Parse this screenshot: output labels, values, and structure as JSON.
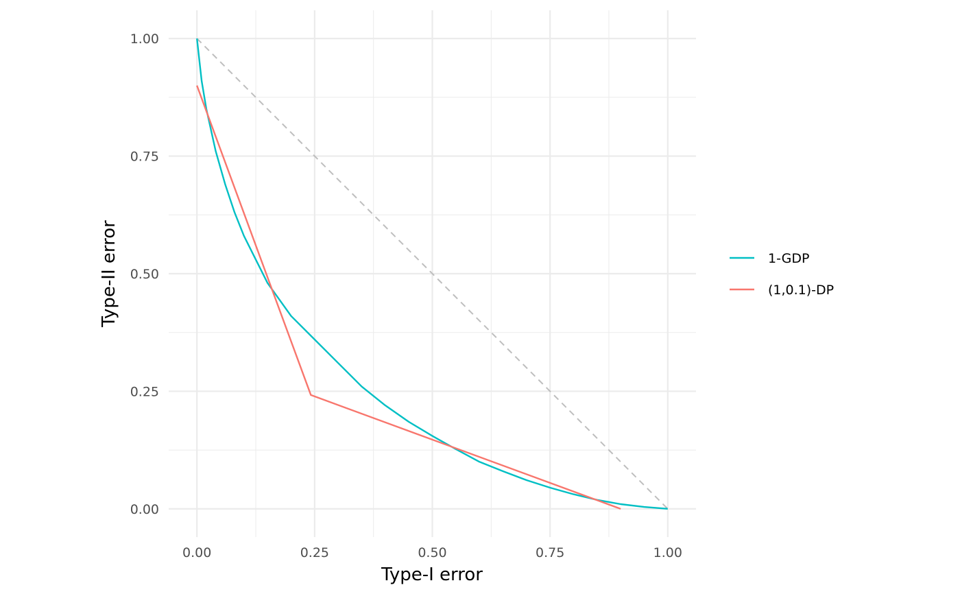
{
  "chart_data": {
    "type": "line",
    "xlabel": "Type-I error",
    "ylabel": "Type-II error",
    "xlim": [
      -0.06,
      1.06
    ],
    "ylim": [
      -0.06,
      1.06
    ],
    "x_ticks": [
      0,
      0.25,
      0.5,
      0.75,
      1
    ],
    "x_tick_labels": [
      "0.00",
      "0.25",
      "0.50",
      "0.75",
      "1.00"
    ],
    "y_ticks": [
      0,
      0.25,
      0.5,
      0.75,
      1
    ],
    "y_tick_labels": [
      "0.00",
      "0.25",
      "0.50",
      "0.75",
      "1.00"
    ],
    "minor_ticks": [
      0.125,
      0.375,
      0.625,
      0.875
    ],
    "grid": true,
    "legend_position": "right",
    "series": [
      {
        "name": "1-GDP",
        "color": "#00BFC4",
        "points": [
          [
            0,
            1
          ],
          [
            0.01,
            0.91
          ],
          [
            0.02,
            0.85
          ],
          [
            0.04,
            0.76
          ],
          [
            0.06,
            0.69
          ],
          [
            0.08,
            0.63
          ],
          [
            0.1,
            0.58
          ],
          [
            0.125,
            0.53
          ],
          [
            0.15,
            0.48
          ],
          [
            0.2,
            0.41
          ],
          [
            0.25,
            0.36
          ],
          [
            0.3,
            0.31
          ],
          [
            0.35,
            0.26
          ],
          [
            0.4,
            0.22
          ],
          [
            0.45,
            0.185
          ],
          [
            0.5,
            0.155
          ],
          [
            0.55,
            0.127
          ],
          [
            0.6,
            0.1
          ],
          [
            0.65,
            0.08
          ],
          [
            0.7,
            0.061
          ],
          [
            0.75,
            0.045
          ],
          [
            0.8,
            0.031
          ],
          [
            0.85,
            0.019
          ],
          [
            0.9,
            0.01
          ],
          [
            0.95,
            0.004
          ],
          [
            1,
            0
          ]
        ]
      },
      {
        "name": "(1,0.1)-DP",
        "color": "#F8766D",
        "points": [
          [
            0,
            0.9
          ],
          [
            0.242,
            0.242
          ],
          [
            0.9,
            0
          ]
        ]
      }
    ],
    "reference_line": {
      "points": [
        [
          0,
          1
        ],
        [
          1,
          0
        ]
      ],
      "color": "#BEBEBE",
      "dashed": true
    }
  }
}
